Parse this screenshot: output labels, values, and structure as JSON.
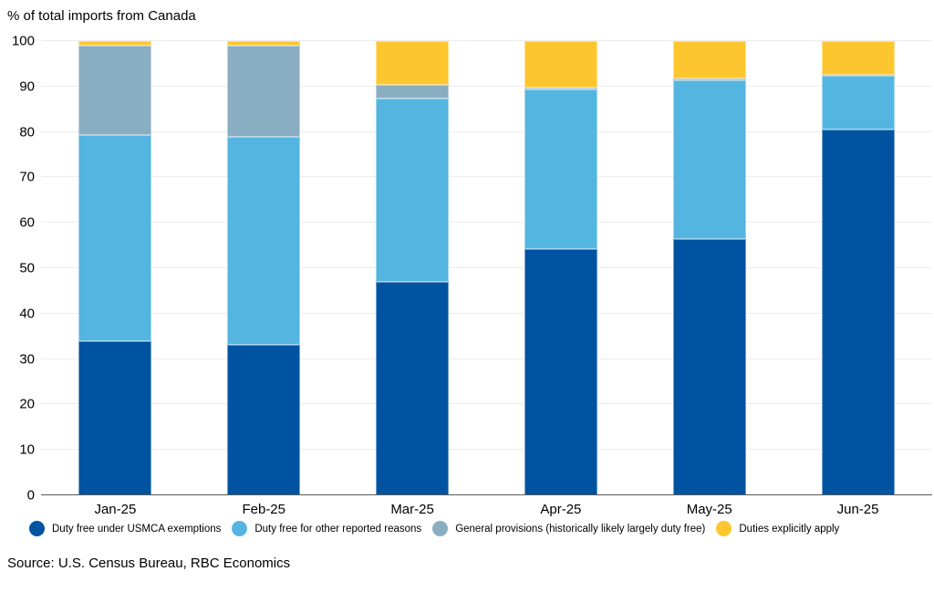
{
  "source": "Source: U.S. Census Bureau, RBC Economics",
  "colors": {
    "axis_line": "#595959",
    "gridline": "#ececec"
  },
  "chart_data": {
    "type": "bar",
    "stacked": true,
    "title": "% of total imports from Canada",
    "categories": [
      "Jan-25",
      "Feb-25",
      "Mar-25",
      "Apr-25",
      "May-25",
      "Jun-25"
    ],
    "series": [
      {
        "name": "Duty free under USMCA exemptions",
        "color": "#0053A1",
        "values": [
          33.9,
          33.2,
          47.0,
          54.2,
          56.4,
          80.6
        ]
      },
      {
        "name": "Duty free for other reported reasons",
        "color": "#54B5E0",
        "values": [
          45.4,
          45.7,
          40.3,
          35.1,
          35.0,
          11.8
        ]
      },
      {
        "name": "General provisions (historically likely largely duty free)",
        "color": "#8AAEC1",
        "values": [
          19.8,
          20.1,
          3.0,
          0.4,
          0.4,
          0.2
        ]
      },
      {
        "name": "Duties explicitly apply",
        "color": "#FEC62E",
        "values": [
          0.9,
          1.0,
          9.7,
          10.3,
          8.2,
          7.4
        ]
      }
    ],
    "ylabel": "",
    "xlabel": "",
    "ylim": [
      0,
      100
    ],
    "yticks": [
      0,
      10,
      20,
      30,
      40,
      50,
      60,
      70,
      80,
      90,
      100
    ],
    "grid": "horizontal",
    "legend_position": "bottom"
  }
}
